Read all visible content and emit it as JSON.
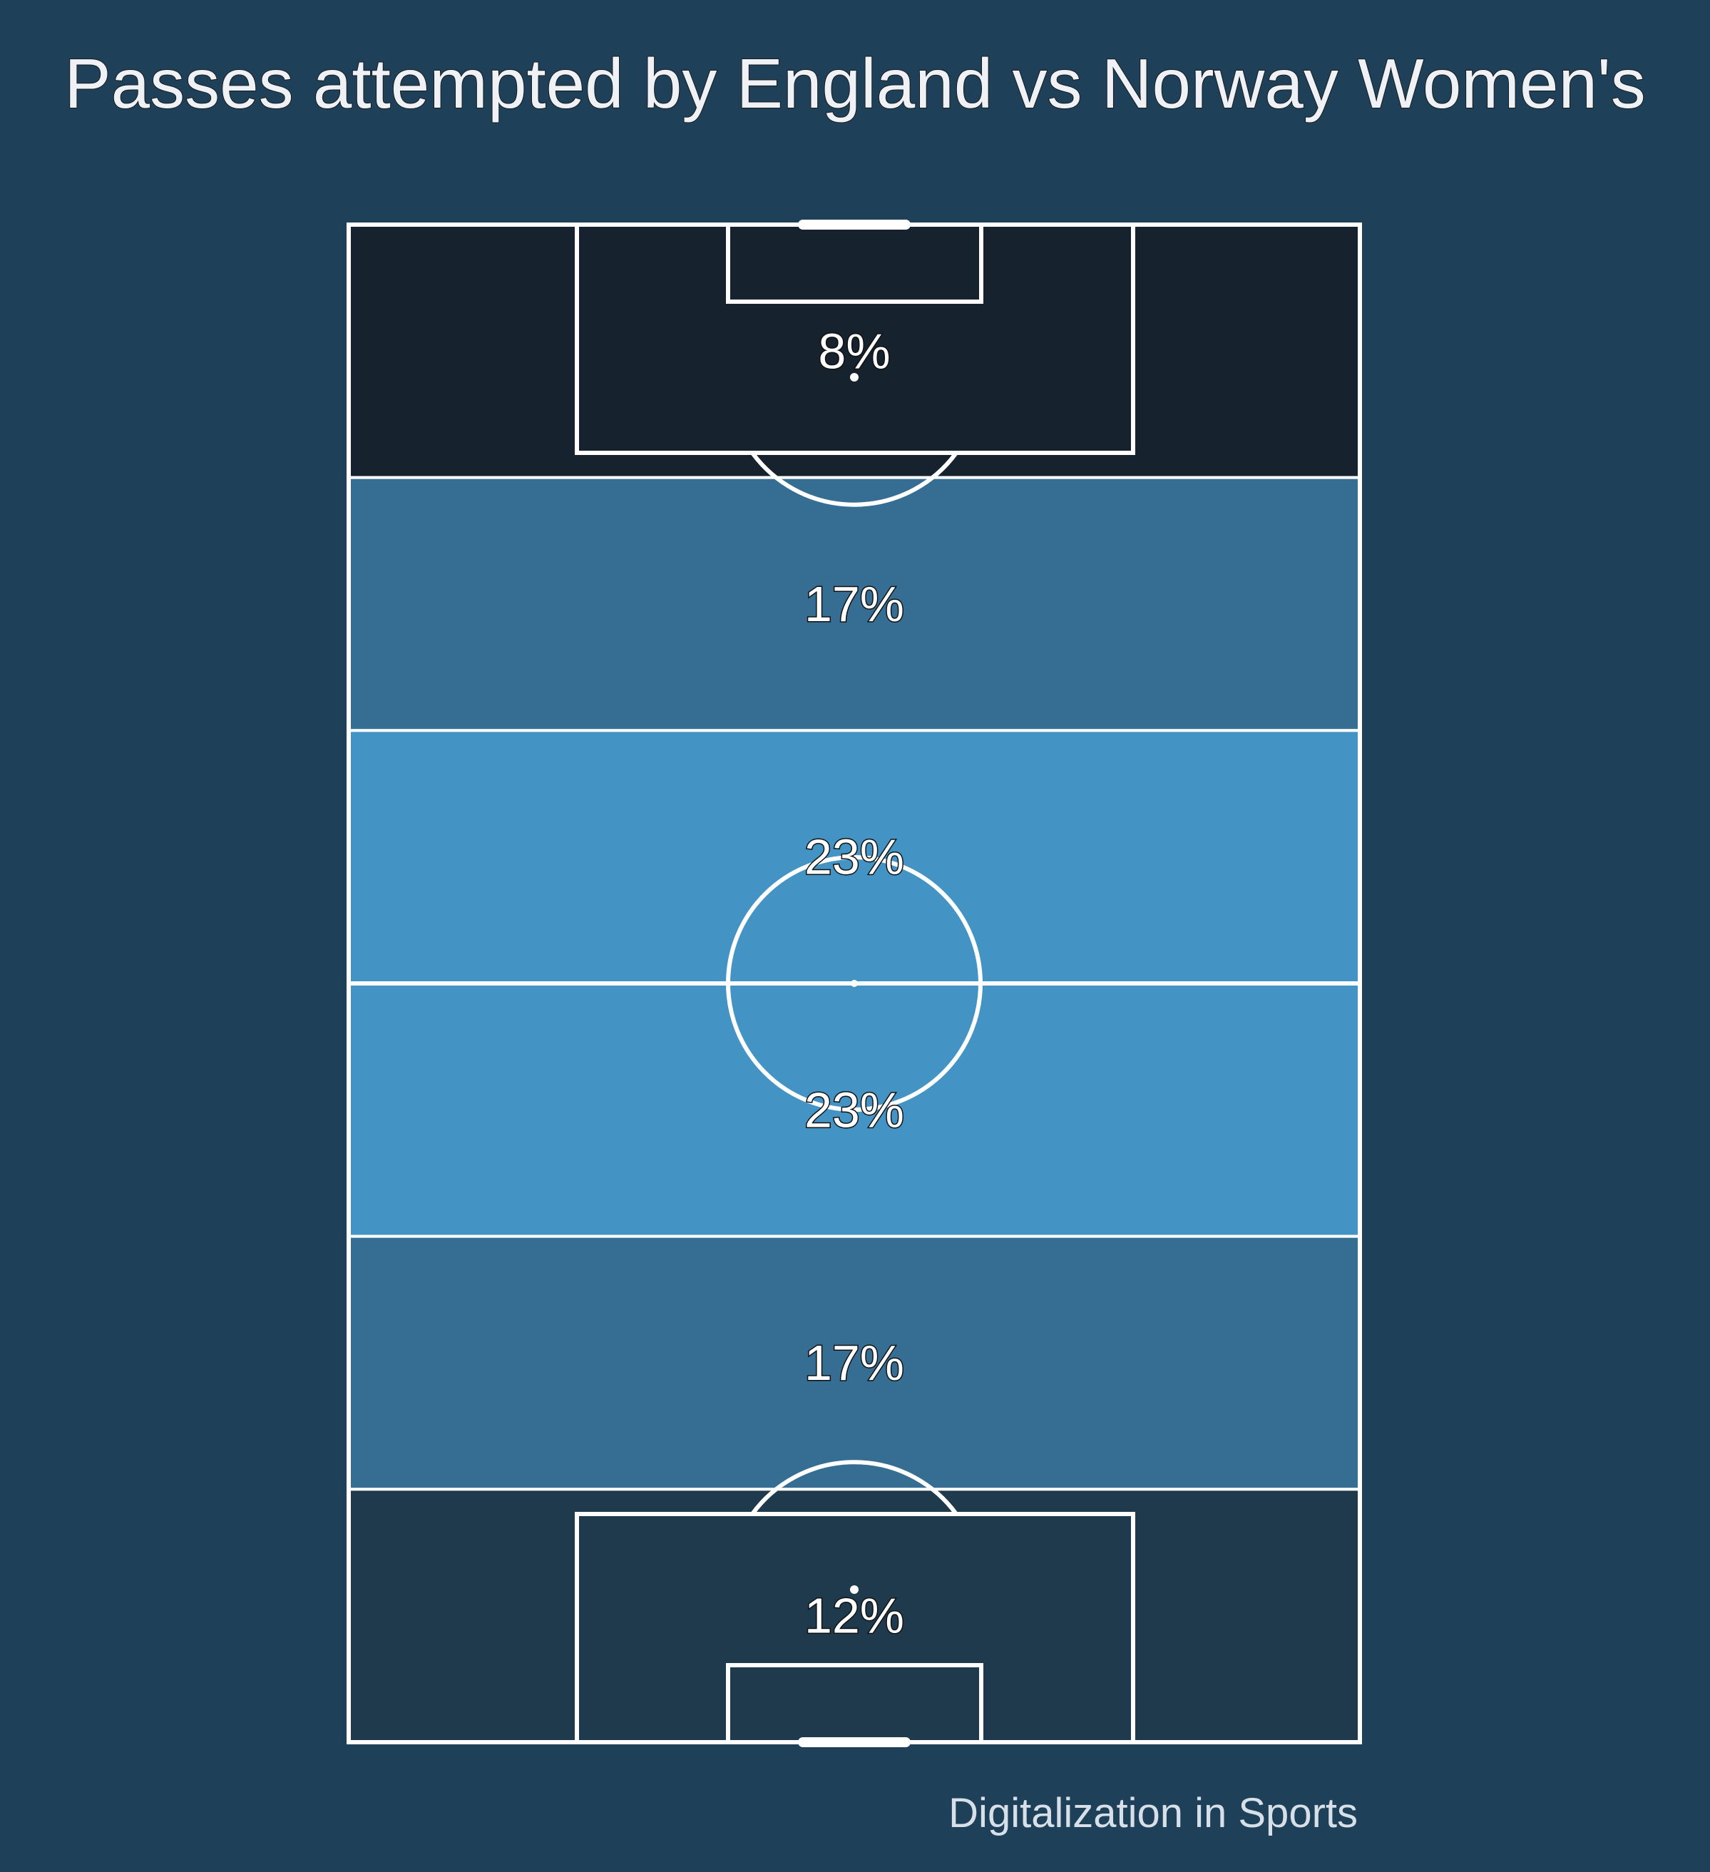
{
  "title": "Passes attempted by England vs Norway Women's",
  "credit": "Digitalization in Sports",
  "colors": {
    "background": "#1e4059",
    "line": "#ffffff"
  },
  "chart_data": {
    "type": "heatmap",
    "title": "Passes attempted by England vs Norway Women's",
    "orientation": "vertical pitch, six horizontal bands from top to bottom",
    "zones": [
      {
        "label": "8%",
        "value": 8,
        "color": "#16222d"
      },
      {
        "label": "17%",
        "value": 17,
        "color": "#366d92"
      },
      {
        "label": "23%",
        "value": 23,
        "color": "#4393c4"
      },
      {
        "label": "23%",
        "value": 23,
        "color": "#4393c4"
      },
      {
        "label": "17%",
        "value": 17,
        "color": "#366d92"
      },
      {
        "label": "12%",
        "value": 12,
        "color": "#1f394d"
      }
    ]
  }
}
